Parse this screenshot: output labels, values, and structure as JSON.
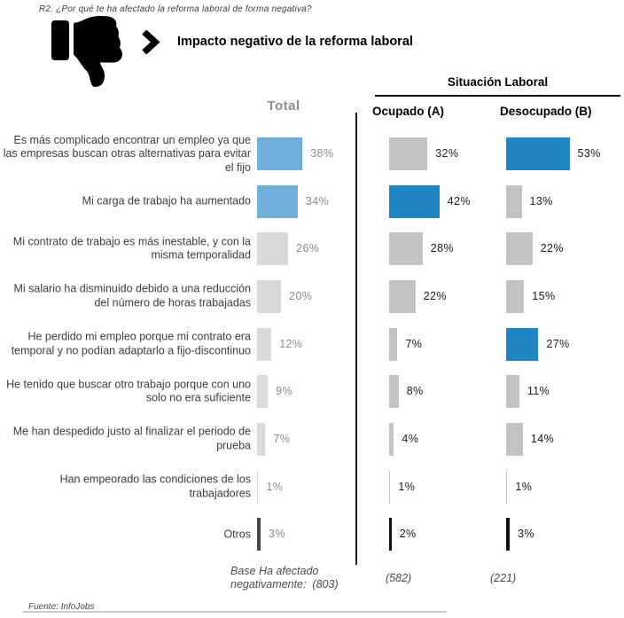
{
  "header": {
    "question": "R2.  ¿Por qué te ha afectado la reforma laboral de forma negativa?",
    "title": "Impacto negativo de la reforma laboral"
  },
  "columns": {
    "total_label": "Total",
    "group_label": "Situación Laboral",
    "ocupado_label": "Ocupado (A)",
    "desocupado_label": "Desocupado (B)"
  },
  "base": {
    "total_line1": "Base Ha afectado",
    "total_line2": "negativamente:  (803)",
    "ocupado": "(582)",
    "desocupado": "(221)"
  },
  "footer": {
    "source": "Fuente: InfoJobs"
  },
  "colors": {
    "total_highlight": "#6FAFD8",
    "situacion_highlight": "#1F86C1",
    "bar_gray_total": "#D9D9D9",
    "bar_gray_situacion": "#C3C3C3",
    "bar_dark": "#4A4A4A",
    "bar_black": "#101010",
    "value_gray": "#8C8C8C",
    "value_dark": "#1A1A1A"
  },
  "chart_data": {
    "type": "bar",
    "orientation": "horizontal",
    "unit": "%",
    "title": "Impacto negativo de la reforma laboral",
    "group_header": "Situación Laboral",
    "categories": [
      "Es más complicado encontrar un empleo ya que las empresas buscan otras alternativas para evitar el fijo",
      "Mi carga de trabajo ha aumentado",
      "Mi contrato de trabajo es más inestable, y con la misma temporalidad",
      "Mi salario ha disminuido debido a una reducción del número de horas trabajadas",
      "He perdido mi empleo porque mi contrato era temporal y no podían adaptarlo a fijo-discontinuo",
      "He tenido que buscar otro trabajo porque con uno solo no era suficiente",
      "Me han despedido justo al finalizar el periodo de prueba",
      "Han empeorado las condiciones de los trabajadores",
      "Otros"
    ],
    "series": [
      {
        "name": "Total",
        "base": 803,
        "values": [
          38,
          34,
          26,
          20,
          12,
          9,
          7,
          1,
          3
        ]
      },
      {
        "name": "Ocupado (A)",
        "base": 582,
        "values": [
          32,
          42,
          28,
          22,
          7,
          8,
          4,
          1,
          2
        ]
      },
      {
        "name": "Desocupado (B)",
        "base": 221,
        "values": [
          53,
          13,
          22,
          15,
          27,
          11,
          14,
          1,
          3
        ]
      }
    ],
    "row_colors": [
      [
        "light",
        "gray",
        "blue"
      ],
      [
        "light",
        "blue",
        "gray"
      ],
      [
        "gray",
        "gray",
        "gray"
      ],
      [
        "gray",
        "gray",
        "gray"
      ],
      [
        "gray",
        "gray",
        "blue"
      ],
      [
        "gray",
        "gray",
        "gray"
      ],
      [
        "gray",
        "gray",
        "gray"
      ],
      [
        "gray",
        "gray",
        "gray"
      ],
      [
        "dark",
        "black",
        "black"
      ]
    ]
  }
}
